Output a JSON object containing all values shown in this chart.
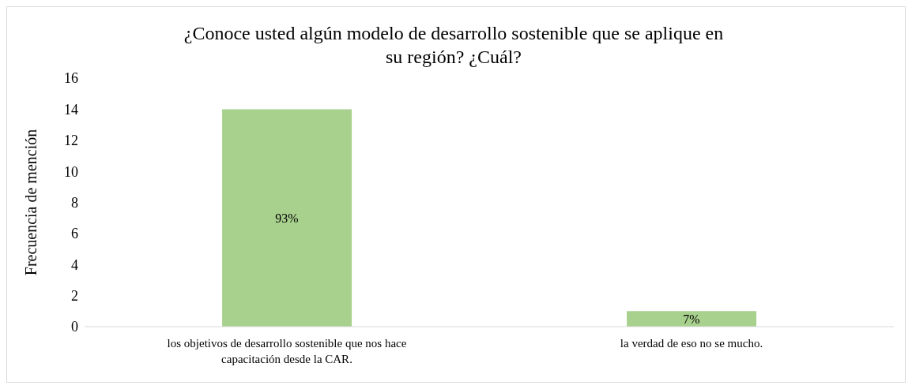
{
  "chart_data": {
    "type": "bar",
    "title": "¿Conoce usted algún modelo de desarrollo sostenible que se aplique en su región? ¿Cuál?",
    "ylabel": "Frecuencia de mención",
    "categories": [
      "los objetivos de desarrollo sostenible que nos hace capacitación desde la CAR.",
      "la verdad de eso no se mucho."
    ],
    "values": [
      14,
      1
    ],
    "color": "#a9d18e",
    "annotations": [
      "93%",
      "7%"
    ],
    "ylim": [
      0,
      16
    ],
    "yticks": [
      0,
      2,
      4,
      6,
      8,
      10,
      12,
      14,
      16
    ],
    "grid": false,
    "legend": false
  }
}
